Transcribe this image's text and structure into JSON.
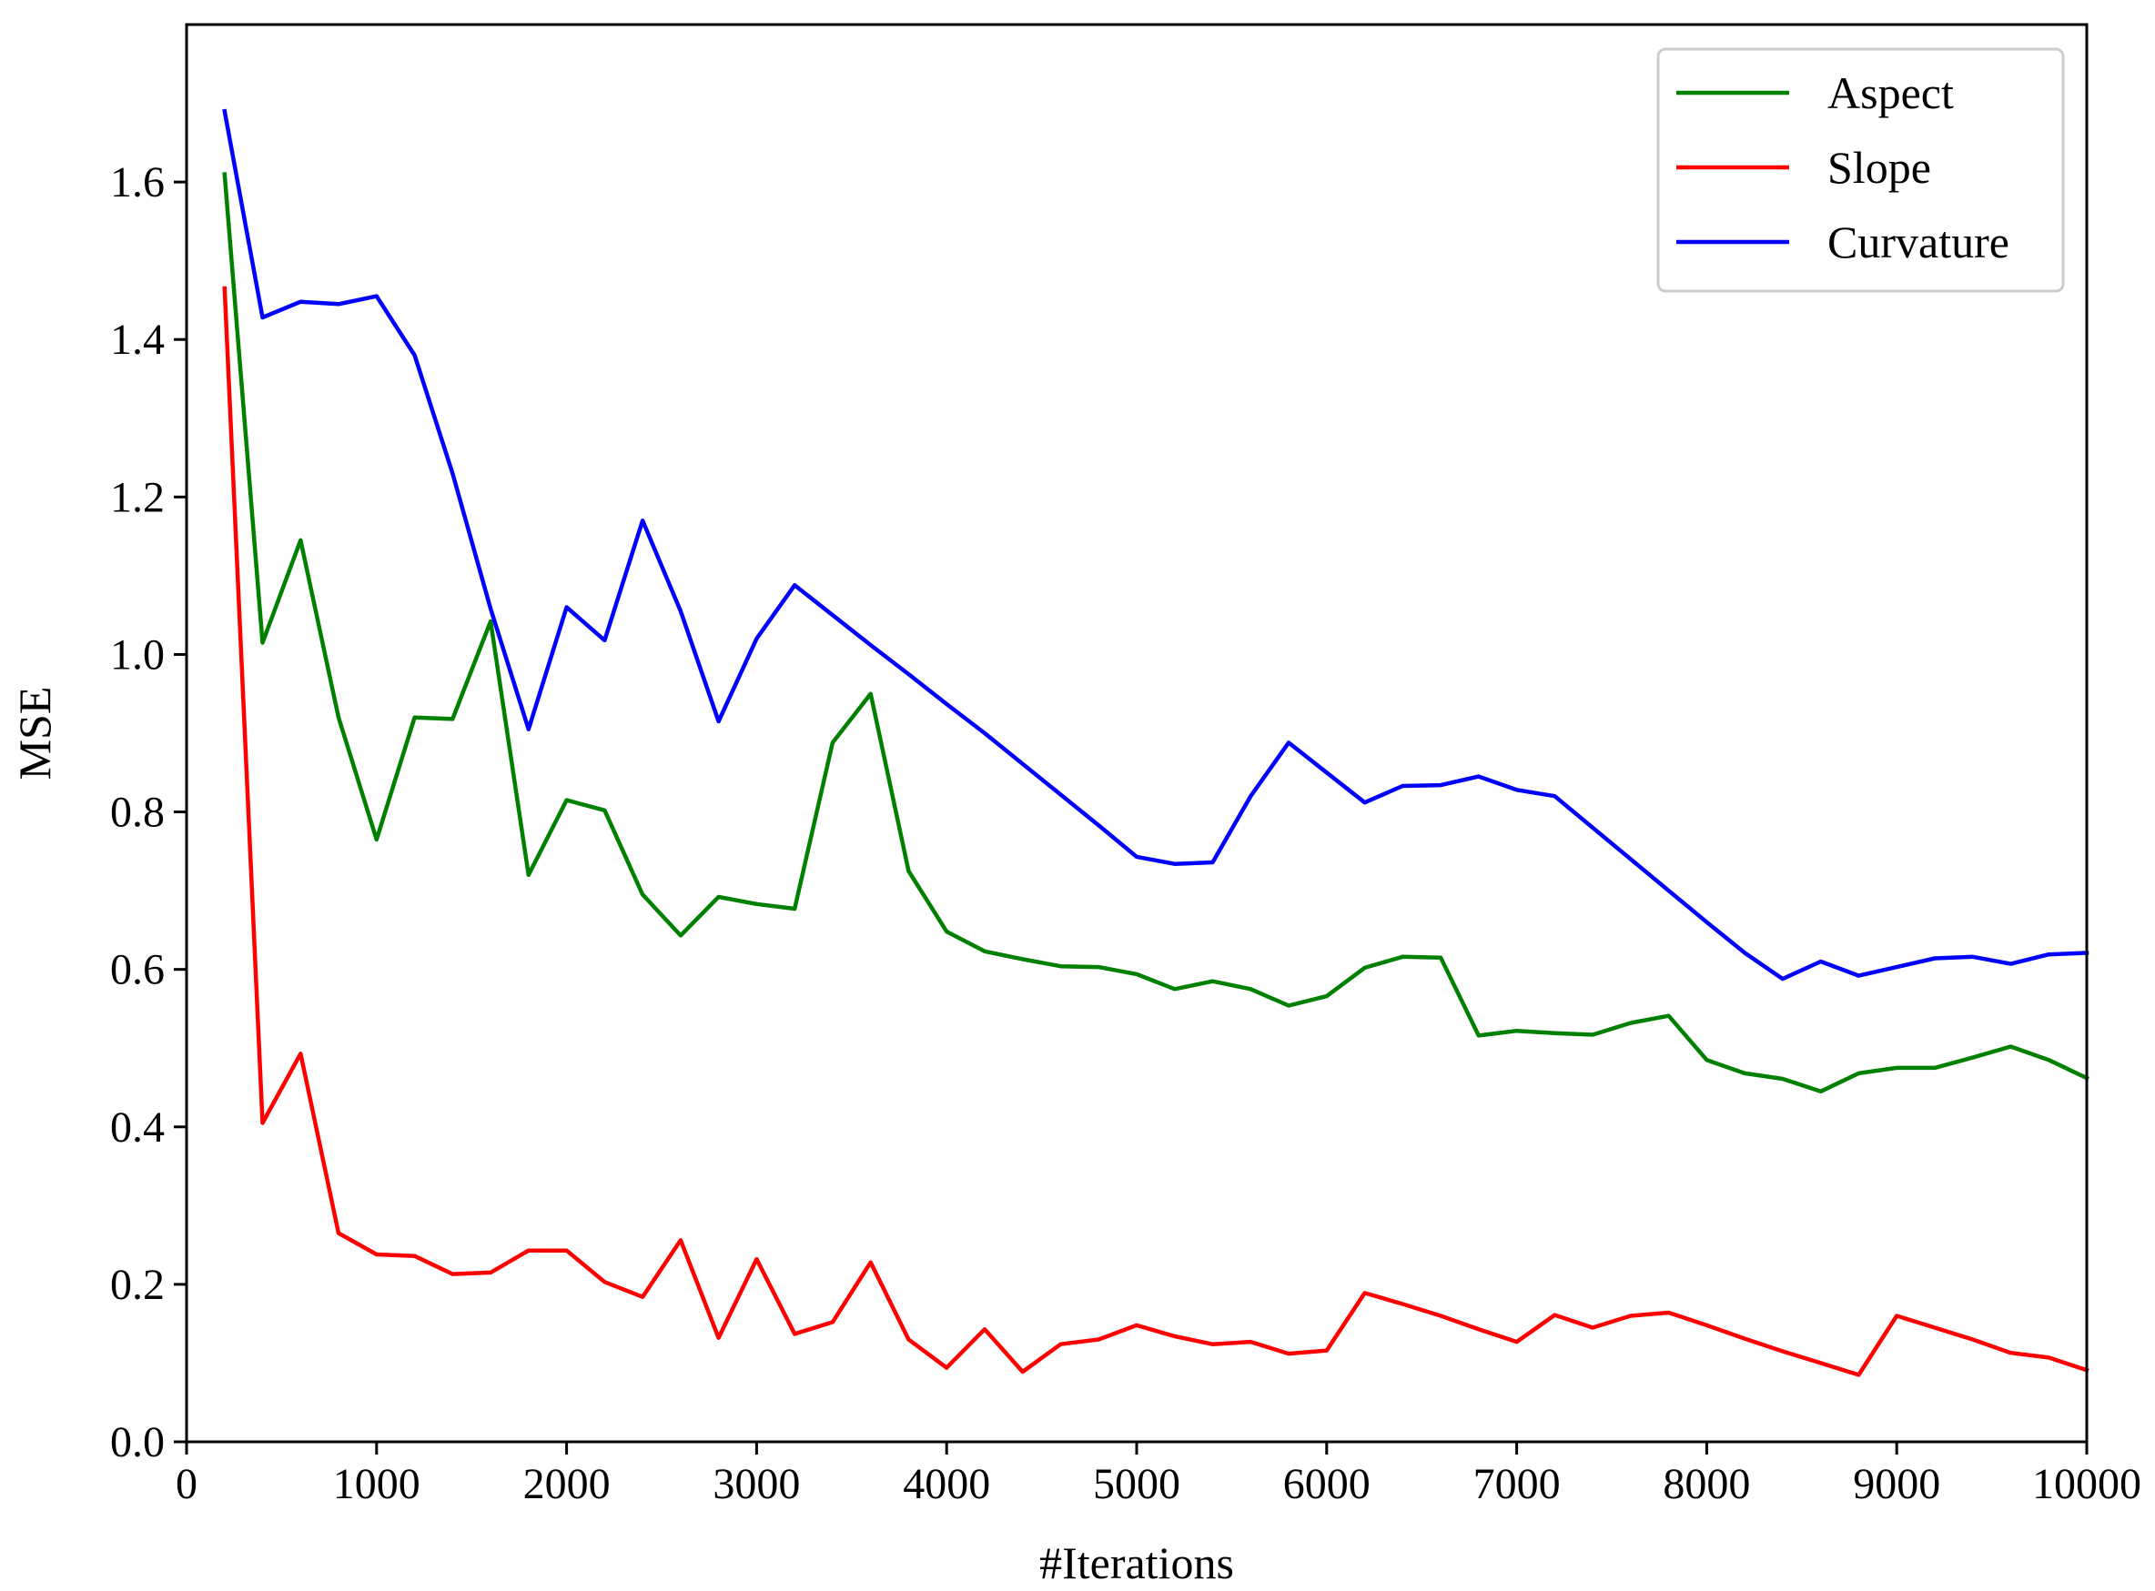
{
  "chart_data": {
    "type": "line",
    "xlabel": "#Iterations",
    "ylabel": "MSE",
    "xlim": [
      0,
      10000
    ],
    "ylim": [
      0,
      1.8
    ],
    "xticks": [
      0,
      1000,
      2000,
      3000,
      4000,
      5000,
      6000,
      7000,
      8000,
      9000,
      10000
    ],
    "yticks": [
      0.0,
      0.2,
      0.4,
      0.6,
      0.8,
      1.0,
      1.2,
      1.4,
      1.6
    ],
    "ytick_labels": [
      "0.0",
      "0.2",
      "0.4",
      "0.6",
      "0.8",
      "1.0",
      "1.2",
      "1.4",
      "1.6"
    ],
    "grid": false,
    "legend_position": "top-right",
    "x": [
      200,
      400,
      600,
      800,
      1000,
      1200,
      1400,
      1600,
      1800,
      2000,
      2200,
      2400,
      2600,
      2800,
      3000,
      3200,
      3400,
      3600,
      3800,
      4000,
      4200,
      4400,
      4600,
      4800,
      5000,
      5200,
      5400,
      5600,
      5800,
      6000,
      6200,
      6400,
      6600,
      6800,
      7000,
      7200,
      7400,
      7600,
      7800,
      8000,
      8200,
      8400,
      8600,
      8800,
      9000,
      9200,
      9400,
      9600,
      9800,
      10000
    ],
    "series": [
      {
        "name": "Aspect",
        "color": "#008000",
        "values": [
          1.61,
          1.015,
          1.145,
          0.92,
          0.765,
          0.92,
          0.918,
          1.042,
          0.72,
          0.815,
          0.802,
          0.695,
          0.643,
          0.692,
          0.683,
          0.677,
          0.888,
          0.95,
          0.725,
          0.648,
          0.623,
          0.613,
          0.604,
          0.603,
          0.594,
          0.575,
          0.585,
          0.575,
          0.554,
          0.566,
          0.602,
          0.616,
          0.615,
          0.516,
          0.522,
          0.519,
          0.517,
          0.532,
          0.541,
          0.485,
          0.468,
          0.461,
          0.445,
          0.468,
          0.475,
          0.475,
          0.488,
          0.502,
          0.485,
          0.462
        ]
      },
      {
        "name": "Slope",
        "color": "#ff0000",
        "values": [
          1.465,
          0.405,
          0.493,
          0.265,
          0.238,
          0.236,
          0.213,
          0.215,
          0.243,
          0.243,
          0.203,
          0.184,
          0.256,
          0.132,
          0.232,
          0.137,
          0.152,
          0.228,
          0.13,
          0.094,
          0.143,
          0.089,
          0.124,
          0.13,
          0.148,
          0.134,
          0.124,
          0.127,
          0.112,
          0.116,
          0.189,
          0.175,
          0.16,
          0.143,
          0.127,
          0.161,
          0.145,
          0.16,
          0.164,
          0.148,
          0.131,
          0.115,
          0.1,
          0.085,
          0.16,
          0.145,
          0.13,
          0.113,
          0.107,
          0.091
        ]
      },
      {
        "name": "Curvature",
        "color": "#0000ff",
        "values": [
          1.69,
          1.428,
          1.448,
          1.445,
          1.455,
          1.38,
          1.23,
          1.058,
          0.905,
          1.06,
          1.018,
          1.17,
          1.055,
          0.915,
          1.02,
          1.088,
          1.05,
          1.012,
          0.975,
          0.937,
          0.9,
          0.861,
          0.822,
          0.783,
          0.743,
          0.734,
          0.736,
          0.82,
          0.888,
          0.85,
          0.812,
          0.833,
          0.834,
          0.845,
          0.828,
          0.82,
          0.78,
          0.74,
          0.7,
          0.66,
          0.621,
          0.588,
          0.61,
          0.592,
          0.603,
          0.614,
          0.616,
          0.607,
          0.619,
          0.621
        ]
      }
    ]
  }
}
